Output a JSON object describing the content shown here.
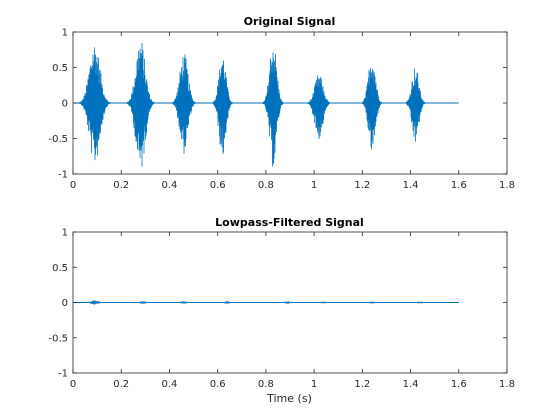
{
  "chart_data": [
    {
      "type": "line",
      "title": "Original Signal",
      "xlabel": "",
      "ylabel": "",
      "xlim": [
        0,
        1.8
      ],
      "ylim": [
        -1,
        1
      ],
      "xticks": [
        "0",
        "0.2",
        "0.4",
        "0.6",
        "0.8",
        "1",
        "1.2",
        "1.4",
        "1.6",
        "1.8"
      ],
      "yticks": [
        "-1",
        "-0.5",
        "0",
        "0.5",
        "1"
      ],
      "grid": false,
      "signal_end": 1.6,
      "series": [
        {
          "color": "#0072BD",
          "bursts": [
            {
              "center": 0.09,
              "width": 0.09,
              "peak_pos": 0.88,
              "peak_neg": -0.88
            },
            {
              "center": 0.28,
              "width": 0.08,
              "peak_pos": 0.92,
              "peak_neg": -0.98
            },
            {
              "center": 0.46,
              "width": 0.07,
              "peak_pos": 0.72,
              "peak_neg": -0.72
            },
            {
              "center": 0.62,
              "width": 0.06,
              "peak_pos": 0.72,
              "peak_neg": -0.78
            },
            {
              "center": 0.83,
              "width": 0.06,
              "peak_pos": 0.92,
              "peak_neg": -0.92
            },
            {
              "center": 1.02,
              "width": 0.07,
              "peak_pos": 0.42,
              "peak_neg": -0.52
            },
            {
              "center": 1.24,
              "width": 0.06,
              "peak_pos": 0.72,
              "peak_neg": -0.72
            },
            {
              "center": 1.42,
              "width": 0.06,
              "peak_pos": 0.52,
              "peak_neg": -0.58
            }
          ]
        }
      ]
    },
    {
      "type": "line",
      "title": "Lowpass-Filtered Signal",
      "xlabel": "Time (s)",
      "ylabel": "",
      "xlim": [
        0,
        1.8
      ],
      "ylim": [
        -1,
        1
      ],
      "xticks": [
        "0",
        "0.2",
        "0.4",
        "0.6",
        "0.8",
        "1",
        "1.2",
        "1.4",
        "1.6",
        "1.8"
      ],
      "yticks": [
        "-1",
        "-0.5",
        "0",
        "0.5",
        "1"
      ],
      "grid": false,
      "signal_end": 1.6,
      "series": [
        {
          "color": "#0072BD",
          "bursts": [
            {
              "center": 0.09,
              "width": 0.07,
              "peak_pos": 0.03,
              "peak_neg": -0.03
            },
            {
              "center": 0.29,
              "width": 0.06,
              "peak_pos": 0.02,
              "peak_neg": -0.02
            },
            {
              "center": 0.46,
              "width": 0.05,
              "peak_pos": 0.02,
              "peak_neg": -0.02
            },
            {
              "center": 0.64,
              "width": 0.05,
              "peak_pos": 0.02,
              "peak_neg": -0.02
            },
            {
              "center": 0.89,
              "width": 0.05,
              "peak_pos": 0.02,
              "peak_neg": -0.02
            },
            {
              "center": 1.04,
              "width": 0.05,
              "peak_pos": 0.015,
              "peak_neg": -0.015
            },
            {
              "center": 1.24,
              "width": 0.05,
              "peak_pos": 0.015,
              "peak_neg": -0.015
            },
            {
              "center": 1.44,
              "width": 0.05,
              "peak_pos": 0.015,
              "peak_neg": -0.015
            }
          ]
        }
      ]
    }
  ]
}
